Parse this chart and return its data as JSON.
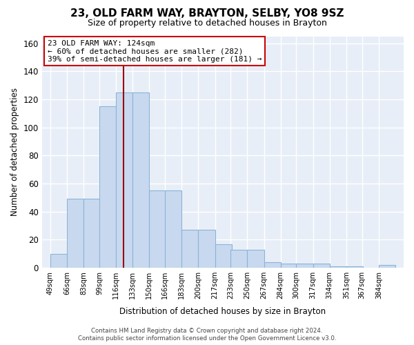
{
  "title1": "23, OLD FARM WAY, BRAYTON, SELBY, YO8 9SZ",
  "title2": "Size of property relative to detached houses in Brayton",
  "xlabel": "Distribution of detached houses by size in Brayton",
  "ylabel": "Number of detached properties",
  "footnote1": "Contains HM Land Registry data © Crown copyright and database right 2024.",
  "footnote2": "Contains public sector information licensed under the Open Government Licence v3.0.",
  "property_size": 124,
  "property_label": "23 OLD FARM WAY: 124sqm",
  "annotation_line1": "← 60% of detached houses are smaller (282)",
  "annotation_line2": "39% of semi-detached houses are larger (181) →",
  "bar_color": "#c8d9ef",
  "bar_edge_color": "#8ab4d8",
  "vline_color": "#990000",
  "annotation_box_edge": "#cc0000",
  "bins": [
    49,
    66,
    83,
    99,
    116,
    133,
    150,
    166,
    183,
    200,
    217,
    233,
    250,
    267,
    284,
    300,
    317,
    334,
    351,
    367,
    384
  ],
  "heights": [
    10,
    49,
    49,
    115,
    125,
    125,
    55,
    55,
    27,
    27,
    17,
    13,
    13,
    4,
    3,
    3,
    3,
    1,
    1,
    0,
    2
  ],
  "ylim": [
    0,
    165
  ],
  "yticks": [
    0,
    20,
    40,
    60,
    80,
    100,
    120,
    140,
    160
  ],
  "bg_color": "#ffffff",
  "plot_bg_color": "#e8eef7",
  "grid_color": "#ffffff",
  "title1_fontsize": 11,
  "title2_fontsize": 9
}
